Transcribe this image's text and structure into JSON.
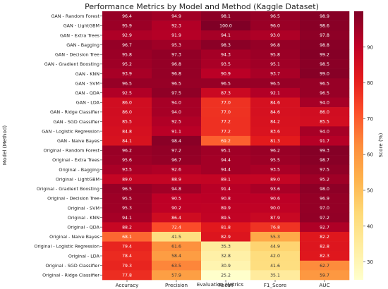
{
  "chart_data": {
    "type": "heatmap",
    "title": "Performance Metrics by Model and Method (Kaggle Dataset)",
    "xlabel": "Evaluation Metrics",
    "ylabel": "Model (Method)",
    "colorbar_label": "Score (%)",
    "colorbar_ticks": [
      30,
      40,
      50,
      60,
      70,
      80,
      90
    ],
    "color_range": [
      25,
      100
    ],
    "colormap": "YlOrRd",
    "columns": [
      "Accuracy",
      "Precision",
      "Recall",
      "F1_Score",
      "AUC"
    ],
    "rows": [
      {
        "label": "GAN - Random Forest",
        "values": [
          96.4,
          94.9,
          98.1,
          96.5,
          98.9
        ]
      },
      {
        "label": "GAN - LightGBM",
        "values": [
          95.9,
          92.3,
          100.0,
          96.0,
          98.6
        ]
      },
      {
        "label": "GAN - Extra Trees",
        "values": [
          92.9,
          91.9,
          94.1,
          93.0,
          97.8
        ]
      },
      {
        "label": "GAN - Bagging",
        "values": [
          96.7,
          95.3,
          98.3,
          96.8,
          98.8
        ]
      },
      {
        "label": "GAN - Decision Tree",
        "values": [
          95.8,
          97.3,
          94.3,
          95.8,
          99.2
        ]
      },
      {
        "label": "GAN - Gradient Boosting",
        "values": [
          95.2,
          96.8,
          93.5,
          95.1,
          98.5
        ]
      },
      {
        "label": "GAN - KNN",
        "values": [
          93.9,
          96.8,
          90.9,
          93.7,
          99.0
        ]
      },
      {
        "label": "GAN - SVM",
        "values": [
          96.5,
          96.5,
          96.5,
          96.5,
          96.5
        ]
      },
      {
        "label": "GAN - QDA",
        "values": [
          92.5,
          97.5,
          87.3,
          92.1,
          96.5
        ]
      },
      {
        "label": "GAN - LDA",
        "values": [
          86.0,
          94.0,
          77.0,
          84.6,
          94.0
        ]
      },
      {
        "label": "GAN - Ridge Classifier",
        "values": [
          86.0,
          94.0,
          77.0,
          84.6,
          86.0
        ]
      },
      {
        "label": "GAN - SGD Classifier",
        "values": [
          85.5,
          92.5,
          77.2,
          84.2,
          85.5
        ]
      },
      {
        "label": "GAN - Logistic Regression",
        "values": [
          84.8,
          91.1,
          77.2,
          83.6,
          94.0
        ]
      },
      {
        "label": "GAN - Naive Bayes",
        "values": [
          84.1,
          98.4,
          69.2,
          81.3,
          91.7
        ]
      },
      {
        "label": "Original - Random Forest",
        "values": [
          96.2,
          97.2,
          95.1,
          96.2,
          99.3
        ]
      },
      {
        "label": "Original - Extra Trees",
        "values": [
          95.6,
          96.7,
          94.4,
          95.5,
          98.7
        ]
      },
      {
        "label": "Original - Bagging",
        "values": [
          93.5,
          92.6,
          94.4,
          93.5,
          97.5
        ]
      },
      {
        "label": "Original - LightGBM",
        "values": [
          89.0,
          88.9,
          89.1,
          89.0,
          95.2
        ]
      },
      {
        "label": "Original - Gradient Boosting",
        "values": [
          96.5,
          94.8,
          91.4,
          93.6,
          98.0
        ]
      },
      {
        "label": "Original - Decision Tree",
        "values": [
          95.5,
          90.5,
          90.8,
          90.6,
          96.9
        ]
      },
      {
        "label": "Original - SVM",
        "values": [
          95.3,
          90.2,
          89.9,
          90.0,
          97.0
        ]
      },
      {
        "label": "Original - KNN",
        "values": [
          94.1,
          86.4,
          89.5,
          87.9,
          97.2
        ]
      },
      {
        "label": "Original - QDA",
        "values": [
          88.2,
          72.4,
          81.8,
          76.8,
          92.7
        ]
      },
      {
        "label": "Original - Naive Bayes",
        "values": [
          68.1,
          41.5,
          82.9,
          55.3,
          82.2
        ]
      },
      {
        "label": "Original - Logistic Regression",
        "values": [
          79.4,
          61.6,
          35.3,
          44.9,
          82.8
        ]
      },
      {
        "label": "Original - LDA",
        "values": [
          78.4,
          58.4,
          32.8,
          42.0,
          82.3
        ]
      },
      {
        "label": "Original - SGD Classifier",
        "values": [
          79.3,
          63.5,
          30.9,
          41.6,
          62.7
        ]
      },
      {
        "label": "Original - Ridge Classifier",
        "values": [
          77.8,
          57.9,
          25.2,
          35.1,
          59.7
        ]
      }
    ]
  }
}
